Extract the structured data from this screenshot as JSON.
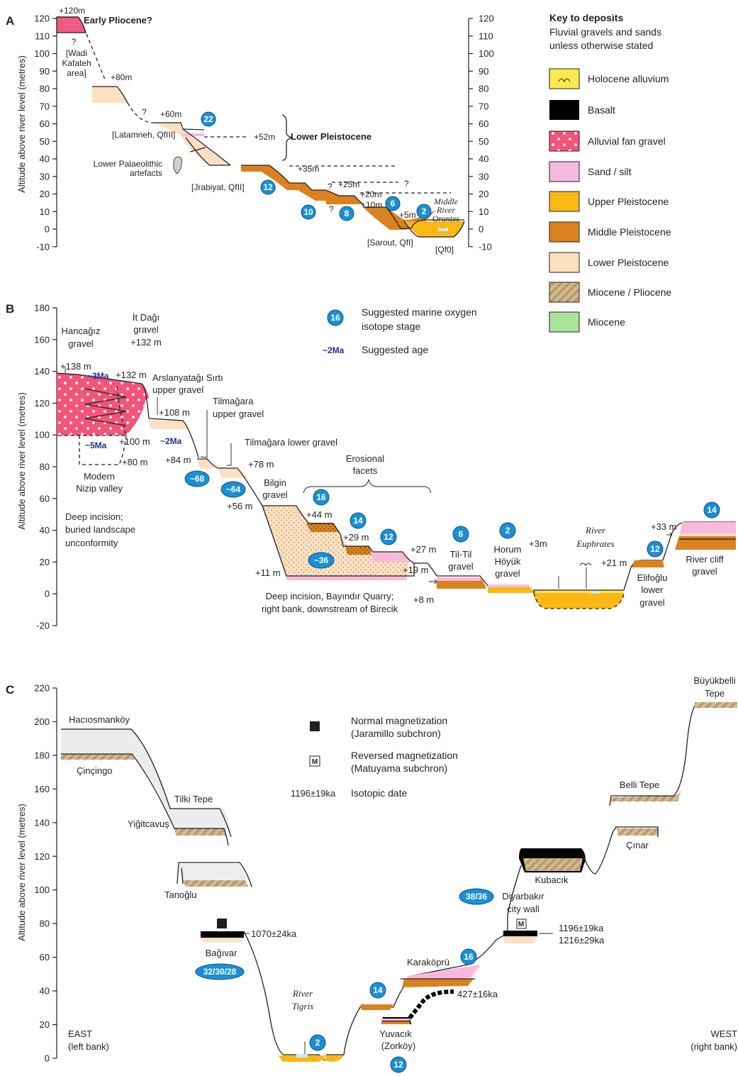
{
  "panels": {
    "a": "A",
    "b": "B",
    "c": "C"
  },
  "colors": {
    "holocene": "#fce94f",
    "basalt": "#000000",
    "alluvial_fan": "#f2547a",
    "sand_silt": "#f9b9de",
    "upper_pleistocene": "#fbb713",
    "middle_pleistocene": "#d9821f",
    "lower_pleistocene": "#fce0c0",
    "miocene_pliocene_a": "#e9836d",
    "miocene_pliocene_b": "#a4d490",
    "miocene": "#a8e59a",
    "early_pliocene": "#ef5b84",
    "mis_badge": "#1a8fd6",
    "age_text": "#1f2f8f",
    "grey_fill": "#ececec"
  },
  "y_axis_label": "Altitude above river level (metres)",
  "panel_a": {
    "ticks": [
      "120",
      "110",
      "100",
      "90",
      "80",
      "70",
      "60",
      "50",
      "40",
      "30",
      "20",
      "10",
      "0",
      "-10"
    ],
    "labels": {
      "p120": "+120m",
      "early_pliocene": "Early Pliocene?",
      "q": "?",
      "wadi1": "[Wadi",
      "wadi2": "Kafateh",
      "wadi3": "area]",
      "p80": "+80m",
      "p60": "+60m",
      "latamneh": "[Latamneh, QfIII]",
      "p52": "+52m",
      "lower_pleistocene": "Lower Pleistocene",
      "artefacts1": "Lower Palaeolithic",
      "artefacts2": "artefacts",
      "jrabiyat": "[Jrabiyat, QfII]",
      "p35": "+35m",
      "p25": "+25m",
      "p20": "+20m",
      "p10": "+10m",
      "p5": "+5m",
      "sarout": "[Sarout, QfI]",
      "qf0": "[Qf0]",
      "middle": "Middle",
      "river": "River",
      "orontes": "Orontes"
    },
    "mis": [
      "22",
      "12",
      "10",
      "8",
      "6",
      "2"
    ]
  },
  "key": {
    "title": "Key to deposits",
    "subtitle1": "Fluvial gravels and sands",
    "subtitle2": "unless otherwise stated",
    "items": [
      "Holocene alluvium",
      "Basalt",
      "Alluvial fan gravel",
      "Sand / silt",
      "Upper Pleistocene",
      "Middle Pleistocene",
      "Lower Pleistocene",
      "Miocene / Pliocene",
      "Miocene"
    ],
    "mis_example": "16",
    "mis_text1": "Suggested marine oxygen",
    "mis_text2": "isotope stage",
    "age_example": "~2Ma",
    "age_text": "Suggested age"
  },
  "panel_b": {
    "ticks": [
      "180",
      "160",
      "140",
      "120",
      "100",
      "80",
      "60",
      "40",
      "20",
      "0",
      "-20"
    ],
    "labels": {
      "hancagiz1": "Hancağız",
      "hancagiz2": "gravel",
      "itdagi1": "İt Dağı",
      "itdagi2": "gravel",
      "itdagi3": "+132 m",
      "p138": "+138 m",
      "p132": "+132 m",
      "age3": "~3Ma",
      "age5": "~5Ma",
      "age2": "~2Ma",
      "arsl1": "Arslanyatağı Sırtı",
      "arsl2": "upper gravel",
      "p108": "+108 m",
      "tilu1": "Tilmağara",
      "tilu2": "upper gravel",
      "till": "Tilmağara lower gravel",
      "p100": "+100 m",
      "p80": "+80 m",
      "p84": "+84 m",
      "p78": "+78 m",
      "mod1": "Modern",
      "mod2": "Nizip valley",
      "deep1": "Deep incision;",
      "deep2": "buried landscape",
      "deep3": "unconformity",
      "bilgin1": "Bilgin",
      "bilgin2": "gravel",
      "p56": "+56 m",
      "eros1": "Erosional",
      "eros2": "facets",
      "p44": "+44 m",
      "p29": "+29 m",
      "p27": "+27 m",
      "p11": "+11 m",
      "p19": "+19 m",
      "p8": "+8 m",
      "bay1": "Deep incision, Bayındır Quarry;",
      "bay2": "right bank, downstream of Birecik",
      "tiltil1": "Til-Til",
      "tiltil2": "gravel",
      "horum1": "Horum",
      "horum2": "Höyük",
      "horum3": "gravel",
      "p3": "+3m",
      "river": "River",
      "euphrates": "Euphrates",
      "p21": "+21 m",
      "elif1": "Elifoğlu",
      "elif2": "lower",
      "elif3": "gravel",
      "p33": "+33 m",
      "cliff1": "River cliff",
      "cliff2": "gravel"
    },
    "mis": [
      "~68",
      "~64",
      "16",
      "14",
      "12",
      "~36",
      "6",
      "2",
      "12",
      "14"
    ]
  },
  "panel_c": {
    "ticks": [
      "220",
      "200",
      "180",
      "160",
      "140",
      "120",
      "100",
      "80",
      "60",
      "40",
      "20",
      "0"
    ],
    "labels": {
      "haciosmankoy": "Hacıosmanköy",
      "cincingo": "Çinçingo",
      "tilki": "Tilki Tepe",
      "yigitcavus": "Yiğitcavuş",
      "tanoglu": "Tanoğlu",
      "m": "M",
      "d1070": "1070±24ka",
      "bagivar": "Bağıvar",
      "normal1": "Normal magnetization",
      "normal2": "(Jaramillo subchron)",
      "reversed1": "Reversed magnetization",
      "reversed2": "(Matuyama subchron)",
      "iso_example": "1196±19ka",
      "iso_text": "Isotopic date",
      "buyuk1": "Büyükbelli",
      "buyuk2": "Tepe",
      "belli": "Belli Tepe",
      "cinar": "Çınar",
      "kubacik": "Kubacık",
      "diyar1": "Diyarbakır",
      "diyar2": "city wall",
      "d1196": "1196±19ka",
      "d1216": "1216±29ka",
      "karakopru": "Karaköprü",
      "d427": "427±16ka",
      "river": "River",
      "tigris": "Tigris",
      "yuvacik1": "Yuvacık",
      "yuvacik2": "(Zorköy)",
      "east1": "EAST",
      "east2": "(left bank)",
      "west1": "WEST",
      "west2": "(right bank)"
    },
    "mis": [
      "32/30/28",
      "2",
      "14",
      "12",
      "16",
      "38/36"
    ]
  }
}
